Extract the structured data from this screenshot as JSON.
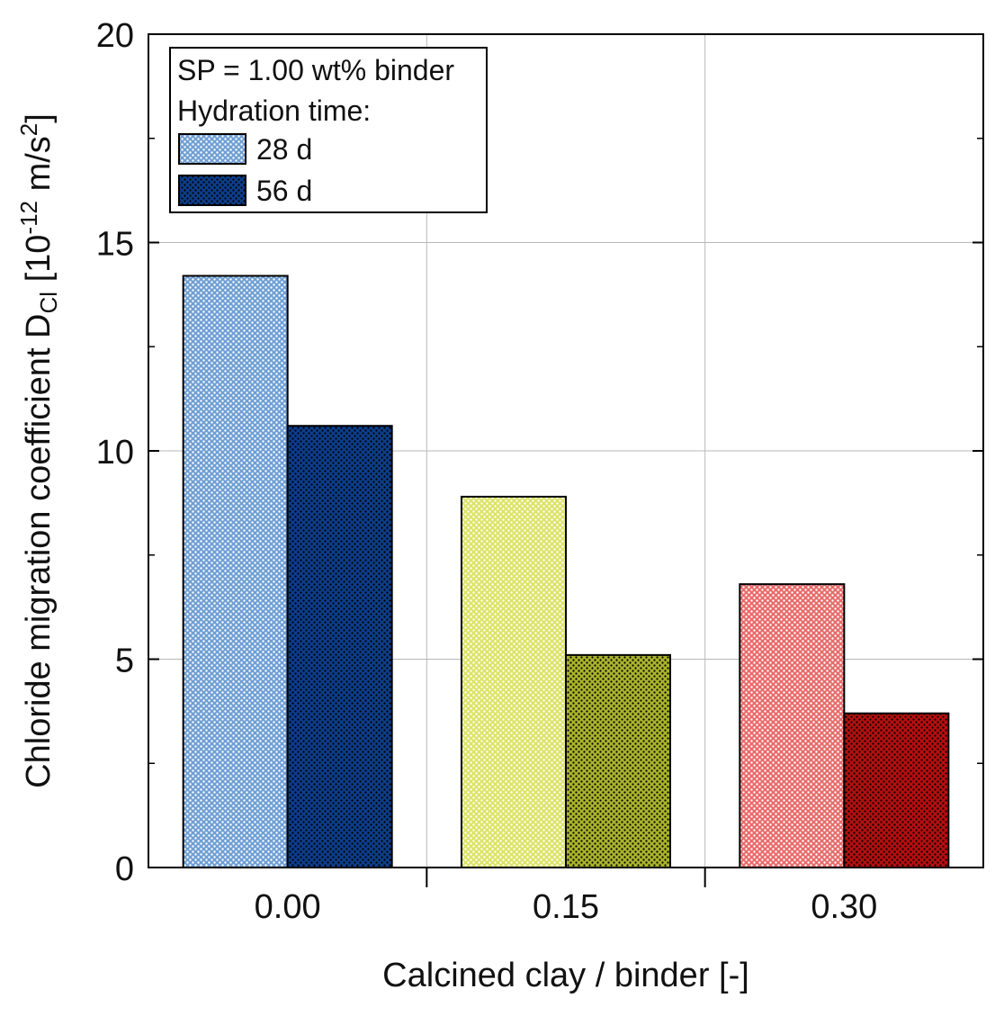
{
  "chart_data": {
    "type": "bar",
    "xlabel": "Calcined clay / binder [-]",
    "ylabel": {
      "prefix": "Chloride migration coefficient D",
      "subscript": "Cl",
      "unit_open": " [10",
      "unit_exp": "-12",
      "unit_mid": " m/s",
      "unit_exp2": "2",
      "unit_close": "]"
    },
    "ylim": [
      0,
      20
    ],
    "yticks_major": [
      0,
      5,
      10,
      15,
      20
    ],
    "yticks_major_labels": [
      "0",
      "5",
      "10",
      "15",
      "20"
    ],
    "yticks_minor": [
      2.5,
      7.5,
      12.5,
      17.5
    ],
    "grid": true,
    "categories": [
      "0.00",
      "0.15",
      "0.30"
    ],
    "series": [
      {
        "name": "28 d",
        "values": [
          14.2,
          8.9,
          6.8
        ]
      },
      {
        "name": "56 d",
        "values": [
          10.6,
          5.1,
          3.7
        ]
      }
    ],
    "bar_colors": [
      {
        "light": "#6f9fd4",
        "dark": "#0d3d8a"
      },
      {
        "light": "#dce36a",
        "dark": "#a9b42a"
      },
      {
        "light": "#e86b6b",
        "dark": "#b50f0f"
      }
    ],
    "legend": {
      "position": "top-left",
      "line1": "SP = 1.00 wt% binder",
      "line2": "Hydration time:",
      "entry_colors": [
        "#6f9fd4",
        "#0d3d8a"
      ]
    }
  }
}
